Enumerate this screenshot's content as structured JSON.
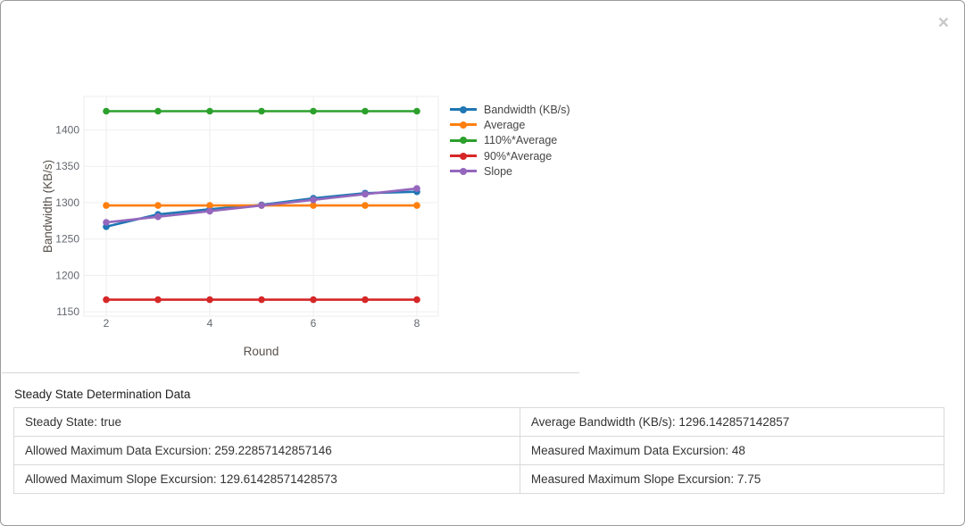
{
  "modal": {
    "close_icon": "×"
  },
  "chart_data": {
    "type": "line",
    "x": [
      2,
      3,
      4,
      5,
      6,
      7,
      8
    ],
    "xlabel": "Round",
    "ylabel": "Bandwidth (KB/s)",
    "x_ticks": [
      2,
      4,
      6,
      8
    ],
    "y_ticks": [
      1150,
      1200,
      1250,
      1300,
      1350,
      1400
    ],
    "xlim": [
      1.569,
      8.414
    ],
    "ylim": [
      1144,
      1446
    ],
    "grid": true,
    "legend_position": "right",
    "series": [
      {
        "name": "Bandwidth (KB/s)",
        "color": "#1f77b4",
        "values": [
          1267,
          1284,
          1291,
          1297,
          1306,
          1313,
          1315
        ]
      },
      {
        "name": "Average",
        "color": "#ff7f0e",
        "values": [
          1296.142857142857,
          1296.142857142857,
          1296.142857142857,
          1296.142857142857,
          1296.142857142857,
          1296.142857142857,
          1296.142857142857
        ]
      },
      {
        "name": "110%*Average",
        "color": "#2ca02c",
        "values": [
          1425.757142857143,
          1425.757142857143,
          1425.757142857143,
          1425.757142857143,
          1425.757142857143,
          1425.757142857143,
          1425.757142857143
        ]
      },
      {
        "name": "90%*Average",
        "color": "#d62728",
        "values": [
          1166.528571428571,
          1166.528571428571,
          1166.528571428571,
          1166.528571428571,
          1166.528571428571,
          1166.528571428571,
          1166.528571428571
        ]
      },
      {
        "name": "Slope",
        "color": "#9467bd",
        "values": [
          1272.89,
          1280.64,
          1288.39,
          1296.14,
          1303.89,
          1311.64,
          1319.39
        ]
      }
    ]
  },
  "table": {
    "heading": "Steady State Determination Data",
    "rows": [
      {
        "left": "Steady State: true",
        "right": "Average Bandwidth (KB/s): 1296.142857142857"
      },
      {
        "left": "Allowed Maximum Data Excursion: 259.22857142857146",
        "right": "Measured Maximum Data Excursion: 48"
      },
      {
        "left": "Allowed Maximum Slope Excursion: 129.61428571428573",
        "right": "Measured Maximum Slope Excursion: 7.75"
      }
    ]
  }
}
